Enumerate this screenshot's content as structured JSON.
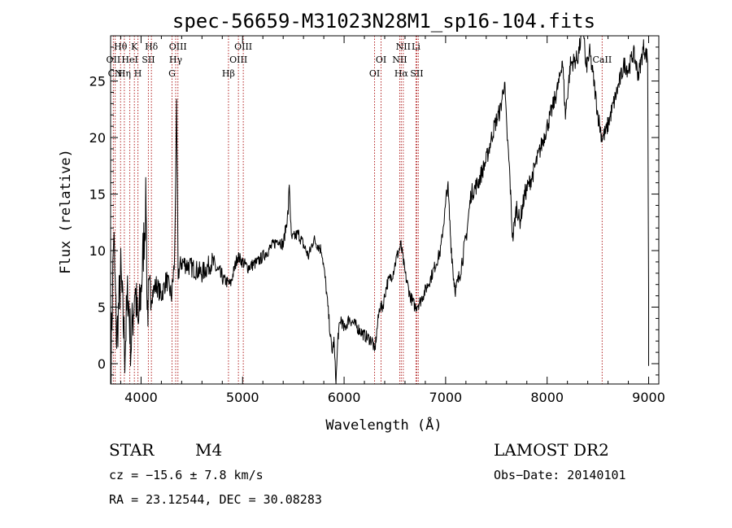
{
  "chart_data": {
    "type": "line",
    "title": "spec-56659-M31023N28M1_sp16-104.fits",
    "xlabel": "Wavelength (Å)",
    "ylabel": "Flux (relative)",
    "xlim": [
      3700,
      9100
    ],
    "ylim": [
      -1.8,
      29
    ],
    "xticks": [
      4000,
      5000,
      6000,
      7000,
      8000,
      9000
    ],
    "yticks": [
      0,
      5,
      10,
      15,
      20,
      25
    ],
    "grid": false,
    "legend": "none",
    "colors": {
      "spectrum": "#000000",
      "line_marker": "#b22222",
      "axes": "#000000"
    },
    "anchors": [
      [
        3705,
        0.5
      ],
      [
        3730,
        11.5
      ],
      [
        3760,
        2.0
      ],
      [
        3800,
        8.0
      ],
      [
        3840,
        1.0
      ],
      [
        3870,
        6.5
      ],
      [
        3900,
        1.5
      ],
      [
        3940,
        7.0
      ],
      [
        3970,
        3.0
      ],
      [
        4000,
        6.5
      ],
      [
        4050,
        14.5
      ],
      [
        4060,
        5.0
      ],
      [
        4100,
        6.0
      ],
      [
        4150,
        7.0
      ],
      [
        4200,
        6.0
      ],
      [
        4250,
        7.5
      ],
      [
        4300,
        6.0
      ],
      [
        4330,
        9.0
      ],
      [
        4350,
        22.5
      ],
      [
        4365,
        8.0
      ],
      [
        4400,
        9.0
      ],
      [
        4500,
        8.5
      ],
      [
        4600,
        8.0
      ],
      [
        4700,
        9.0
      ],
      [
        4800,
        7.5
      ],
      [
        4880,
        7.0
      ],
      [
        4950,
        9.5
      ],
      [
        5050,
        8.5
      ],
      [
        5150,
        9.0
      ],
      [
        5250,
        10.0
      ],
      [
        5350,
        11.0
      ],
      [
        5400,
        10.5
      ],
      [
        5450,
        13.5
      ],
      [
        5460,
        16.0
      ],
      [
        5480,
        11.0
      ],
      [
        5550,
        11.5
      ],
      [
        5650,
        9.5
      ],
      [
        5700,
        11.0
      ],
      [
        5780,
        10.0
      ],
      [
        5820,
        7.0
      ],
      [
        5860,
        3.0
      ],
      [
        5880,
        1.0
      ],
      [
        5900,
        2.0
      ],
      [
        5920,
        -1.8
      ],
      [
        5940,
        2.5
      ],
      [
        5970,
        4.0
      ],
      [
        6000,
        3.0
      ],
      [
        6050,
        4.0
      ],
      [
        6100,
        3.5
      ],
      [
        6200,
        2.5
      ],
      [
        6280,
        2.0
      ],
      [
        6300,
        1.0
      ],
      [
        6330,
        3.5
      ],
      [
        6350,
        5.0
      ],
      [
        6380,
        5.0
      ],
      [
        6420,
        7.0
      ],
      [
        6480,
        8.0
      ],
      [
        6520,
        9.5
      ],
      [
        6560,
        10.5
      ],
      [
        6600,
        8.0
      ],
      [
        6650,
        6.0
      ],
      [
        6700,
        5.0
      ],
      [
        6750,
        5.5
      ],
      [
        6850,
        7.5
      ],
      [
        6950,
        10.0
      ],
      [
        7000,
        14.0
      ],
      [
        7020,
        16.0
      ],
      [
        7050,
        11.0
      ],
      [
        7080,
        7.5
      ],
      [
        7100,
        6.5
      ],
      [
        7130,
        7.5
      ],
      [
        7200,
        11.0
      ],
      [
        7250,
        15.0
      ],
      [
        7320,
        16.0
      ],
      [
        7400,
        18.0
      ],
      [
        7480,
        21.0
      ],
      [
        7540,
        22.5
      ],
      [
        7580,
        25.0
      ],
      [
        7600,
        21.0
      ],
      [
        7630,
        17.0
      ],
      [
        7660,
        11.0
      ],
      [
        7700,
        14.0
      ],
      [
        7730,
        12.5
      ],
      [
        7780,
        15.0
      ],
      [
        7850,
        16.5
      ],
      [
        7950,
        19.5
      ],
      [
        8050,
        22.5
      ],
      [
        8120,
        25.0
      ],
      [
        8150,
        27.0
      ],
      [
        8180,
        22.0
      ],
      [
        8230,
        26.5
      ],
      [
        8300,
        27.0
      ],
      [
        8360,
        30.0
      ],
      [
        8380,
        26.0
      ],
      [
        8420,
        27.5
      ],
      [
        8460,
        25.0
      ],
      [
        8500,
        22.0
      ],
      [
        8540,
        20.0
      ],
      [
        8580,
        20.5
      ],
      [
        8640,
        22.5
      ],
      [
        8700,
        24.5
      ],
      [
        8760,
        26.5
      ],
      [
        8800,
        26.0
      ],
      [
        8850,
        27.5
      ],
      [
        8900,
        25.5
      ],
      [
        8950,
        28.0
      ],
      [
        8990,
        27.0
      ],
      [
        9000,
        6.0
      ],
      [
        9000,
        -0.2
      ]
    ],
    "lines": [
      {
        "name": "Hθ",
        "x": 3798
      },
      {
        "name": "OII",
        "x": 3727
      },
      {
        "name": "CN",
        "x": 3745
      },
      {
        "name": "Hη",
        "x": 3835
      },
      {
        "name": "HeI",
        "x": 3889
      },
      {
        "name": "K",
        "x": 3934
      },
      {
        "name": "H",
        "x": 3969
      },
      {
        "name": "SII",
        "x": 4072
      },
      {
        "name": "Hδ",
        "x": 4102
      },
      {
        "name": "G",
        "x": 4305
      },
      {
        "name": "Hγ",
        "x": 4341
      },
      {
        "name": "OIII",
        "x": 4363
      },
      {
        "name": "Hβ",
        "x": 4861
      },
      {
        "name": "OIII",
        "x": 4959
      },
      {
        "name": "OIII",
        "x": 5007
      },
      {
        "name": "OI",
        "x": 6300
      },
      {
        "name": "OI",
        "x": 6364
      },
      {
        "name": "NII",
        "x": 6548
      },
      {
        "name": "Hα",
        "x": 6563
      },
      {
        "name": "NII",
        "x": 6583
      },
      {
        "name": "Li",
        "x": 6708
      },
      {
        "name": "SII",
        "x": 6716
      },
      {
        "name": "SII",
        "x": 6731
      },
      {
        "name": "CaII",
        "x": 8542
      }
    ],
    "line_labels": [
      {
        "text": "Hθ",
        "x": 3798,
        "row": 1
      },
      {
        "text": "K",
        "x": 3934,
        "row": 1
      },
      {
        "text": "Hδ",
        "x": 4102,
        "row": 1
      },
      {
        "text": "OIII",
        "x": 4363,
        "row": 1
      },
      {
        "text": "OIII",
        "x": 5007,
        "row": 1
      },
      {
        "text": "NII",
        "x": 6583,
        "row": 1
      },
      {
        "text": "Li",
        "x": 6708,
        "row": 1
      },
      {
        "text": "OII",
        "x": 3727,
        "row": 2
      },
      {
        "text": "HeI",
        "x": 3889,
        "row": 2
      },
      {
        "text": "SII",
        "x": 4072,
        "row": 2
      },
      {
        "text": "Hγ",
        "x": 4341,
        "row": 2
      },
      {
        "text": "OIII",
        "x": 4959,
        "row": 2
      },
      {
        "text": "OI",
        "x": 6364,
        "row": 2
      },
      {
        "text": "NII",
        "x": 6548,
        "row": 2
      },
      {
        "text": "CaII",
        "x": 8542,
        "row": 2
      },
      {
        "text": "CN",
        "x": 3745,
        "row": 3
      },
      {
        "text": "Hη",
        "x": 3835,
        "row": 3
      },
      {
        "text": "H",
        "x": 3969,
        "row": 3
      },
      {
        "text": "G",
        "x": 4305,
        "row": 3
      },
      {
        "text": "Hβ",
        "x": 4861,
        "row": 3
      },
      {
        "text": "OI",
        "x": 6300,
        "row": 3
      },
      {
        "text": "Hα",
        "x": 6563,
        "row": 3
      },
      {
        "text": "SII",
        "x": 6716,
        "row": 3
      }
    ]
  },
  "info": {
    "class": "STAR",
    "subclass": "M4",
    "survey": "LAMOST DR2",
    "cz": "cz = −15.6 ± 7.8 km/s",
    "obs_date": "Obs−Date: 20140101",
    "coords": "RA =  23.12544, DEC =  30.08283"
  }
}
